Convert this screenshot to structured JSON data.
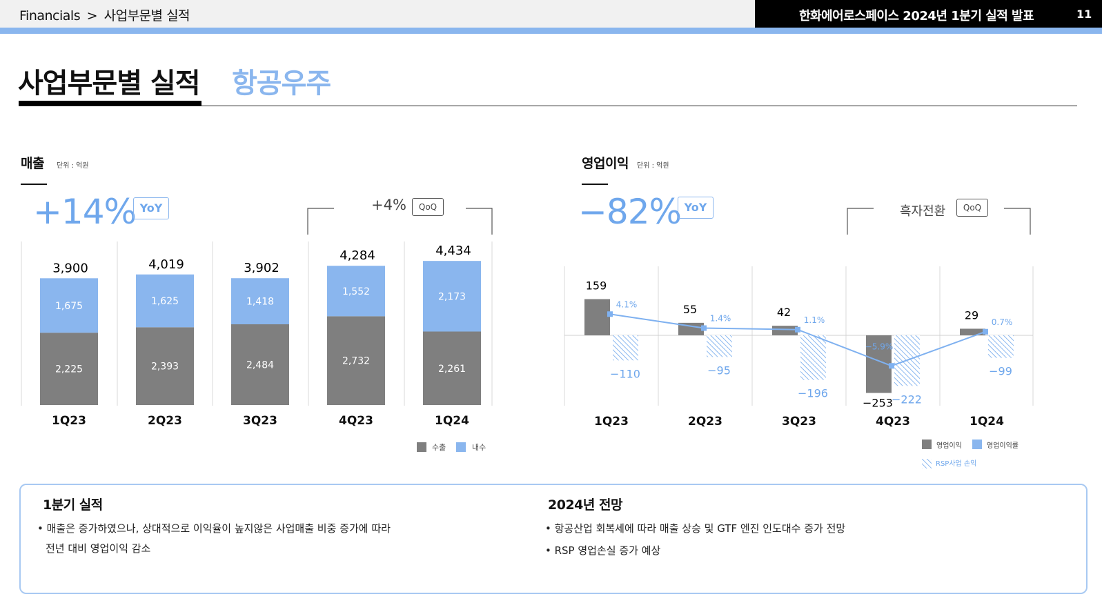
{
  "header": {
    "breadcrumb_root": "Financials",
    "breadcrumb_sep": ">",
    "breadcrumb_page": "사업부문별 실적",
    "report_title": "한화에어로스페이스 2024년 1분기 실적 발표",
    "page_number": "11"
  },
  "page": {
    "title": "사업부문별 실적",
    "subtitle": "항공우주"
  },
  "colors": {
    "accent_blue": "#8ab6ee",
    "bar_gray": "#7f7f7f",
    "line_blue": "#7fb1f0"
  },
  "revenue": {
    "title": "매출",
    "unit": "단위 : 억원",
    "yoy_value": "+14%",
    "yoy_label": "YoY",
    "qoq_value": "+4%",
    "qoq_label": "QoQ",
    "legend": [
      "수출",
      "내수"
    ]
  },
  "op_income": {
    "title": "영업이익",
    "unit": "단위 : 억원",
    "yoy_value": "−82%",
    "yoy_label": "YoY",
    "qoq_value": "흑자전환",
    "qoq_label": "QoQ",
    "legend": [
      "영업이익",
      "영업이익률",
      "RSP사업 손익"
    ]
  },
  "chart_data": [
    {
      "type": "bar",
      "stacked": true,
      "title": "매출",
      "unit": "억원",
      "categories": [
        "1Q23",
        "2Q23",
        "3Q23",
        "4Q23",
        "1Q24"
      ],
      "series": [
        {
          "name": "수출",
          "values": [
            2225,
            2393,
            2484,
            2732,
            2261
          ],
          "labels": [
            "2,225",
            "2,393",
            "2,484",
            "2,732",
            "2,261"
          ]
        },
        {
          "name": "내수",
          "values": [
            1675,
            1625,
            1418,
            1552,
            2173
          ],
          "labels": [
            "1,675",
            "1,625",
            "1,418",
            "1,552",
            "2,173"
          ]
        }
      ],
      "totals": [
        3900,
        4019,
        3902,
        4284,
        4434
      ],
      "total_labels": [
        "3,900",
        "4,019",
        "3,902",
        "4,284",
        "4,434"
      ],
      "ylim": [
        0,
        4600
      ]
    },
    {
      "type": "bar",
      "title": "영업이익",
      "unit": "억원",
      "categories": [
        "1Q23",
        "2Q23",
        "3Q23",
        "4Q23",
        "1Q24"
      ],
      "series": [
        {
          "name": "영업이익",
          "values": [
            159,
            55,
            42,
            -253,
            29
          ],
          "labels": [
            "159",
            "55",
            "42",
            "−253",
            "29"
          ]
        },
        {
          "name": "RSP사업 손익",
          "values": [
            -110,
            -95,
            -196,
            -222,
            -99
          ],
          "labels": [
            "−110",
            "−95",
            "−196",
            "−222",
            "−99"
          ]
        },
        {
          "name": "영업이익률",
          "type": "line",
          "values": [
            4.1,
            1.4,
            1.1,
            -5.9,
            0.7
          ],
          "labels": [
            "4.1%",
            "1.4%",
            "1.1%",
            "−5.9%",
            "0.7%"
          ]
        }
      ],
      "ylim": [
        -300,
        300
      ]
    }
  ],
  "summary": {
    "q1_title": "1분기 실적",
    "q1_line1": "• 매출은 증가하였으나, 상대적으로 이익율이 높지않은 사업매출 비중 증가에 따라",
    "q1_line2": "전년 대비 영업이익 감소",
    "outlook_title": "2024년 전망",
    "outlook_line1": "• 항공산업 회복세에 따라 매출 상승 및 GTF 엔진 인도대수 증가 전망",
    "outlook_line2": "• RSP 영업손실 증가 예상"
  }
}
